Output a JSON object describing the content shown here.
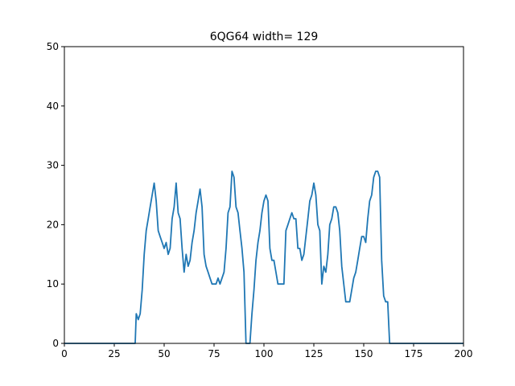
{
  "chart_data": {
    "type": "line",
    "title": "6QG64 width= 129",
    "xlabel": "",
    "ylabel": "",
    "xlim": [
      0,
      200
    ],
    "ylim": [
      0,
      50
    ],
    "xticks": [
      0,
      25,
      50,
      75,
      100,
      125,
      150,
      175,
      200
    ],
    "yticks": [
      0,
      10,
      20,
      30,
      40,
      50
    ],
    "grid": false,
    "line_color": "#1f77b4",
    "series": [
      {
        "points": [
          [
            0,
            0
          ],
          [
            35,
            0
          ],
          [
            35.5,
            0
          ],
          [
            36,
            5
          ],
          [
            37,
            4
          ],
          [
            38,
            5
          ],
          [
            39,
            9
          ],
          [
            40,
            15
          ],
          [
            41,
            19
          ],
          [
            42,
            21
          ],
          [
            43,
            23
          ],
          [
            44,
            25
          ],
          [
            45,
            27
          ],
          [
            46,
            24
          ],
          [
            47,
            19
          ],
          [
            48,
            18
          ],
          [
            49,
            17
          ],
          [
            50,
            16
          ],
          [
            51,
            17
          ],
          [
            52,
            15
          ],
          [
            53,
            16
          ],
          [
            54,
            21
          ],
          [
            55,
            23
          ],
          [
            56,
            27
          ],
          [
            57,
            22
          ],
          [
            58,
            21
          ],
          [
            59,
            16
          ],
          [
            60,
            12
          ],
          [
            61,
            15
          ],
          [
            62,
            13
          ],
          [
            63,
            14
          ],
          [
            64,
            17
          ],
          [
            65,
            19
          ],
          [
            66,
            22
          ],
          [
            67,
            24
          ],
          [
            68,
            26
          ],
          [
            69,
            23
          ],
          [
            70,
            15
          ],
          [
            71,
            13
          ],
          [
            72,
            12
          ],
          [
            73,
            11
          ],
          [
            74,
            10
          ],
          [
            75,
            10
          ],
          [
            76,
            10
          ],
          [
            77,
            11
          ],
          [
            78,
            10
          ],
          [
            79,
            11
          ],
          [
            80,
            12
          ],
          [
            81,
            16
          ],
          [
            82,
            22
          ],
          [
            83,
            23
          ],
          [
            84,
            29
          ],
          [
            85,
            28
          ],
          [
            86,
            23
          ],
          [
            87,
            22
          ],
          [
            88,
            19
          ],
          [
            89,
            16
          ],
          [
            90,
            12
          ],
          [
            91,
            0
          ],
          [
            93,
            0
          ],
          [
            94,
            5
          ],
          [
            95,
            9
          ],
          [
            96,
            14
          ],
          [
            97,
            17
          ],
          [
            98,
            19
          ],
          [
            99,
            22
          ],
          [
            100,
            24
          ],
          [
            101,
            25
          ],
          [
            102,
            24
          ],
          [
            103,
            16
          ],
          [
            104,
            14
          ],
          [
            105,
            14
          ],
          [
            106,
            12
          ],
          [
            107,
            10
          ],
          [
            108,
            10
          ],
          [
            109,
            10
          ],
          [
            110,
            10
          ],
          [
            111,
            19
          ],
          [
            112,
            20
          ],
          [
            113,
            21
          ],
          [
            114,
            22
          ],
          [
            115,
            21
          ],
          [
            116,
            21
          ],
          [
            117,
            16
          ],
          [
            118,
            16
          ],
          [
            119,
            14
          ],
          [
            120,
            15
          ],
          [
            121,
            18
          ],
          [
            122,
            21
          ],
          [
            123,
            24
          ],
          [
            124,
            25
          ],
          [
            125,
            27
          ],
          [
            126,
            25
          ],
          [
            127,
            20
          ],
          [
            128,
            19
          ],
          [
            129,
            10
          ],
          [
            130,
            13
          ],
          [
            131,
            12
          ],
          [
            132,
            15
          ],
          [
            133,
            20
          ],
          [
            134,
            21
          ],
          [
            135,
            23
          ],
          [
            136,
            23
          ],
          [
            137,
            22
          ],
          [
            138,
            19
          ],
          [
            139,
            13
          ],
          [
            140,
            10
          ],
          [
            141,
            7
          ],
          [
            142,
            7
          ],
          [
            143,
            7
          ],
          [
            144,
            9
          ],
          [
            145,
            11
          ],
          [
            146,
            12
          ],
          [
            147,
            14
          ],
          [
            148,
            16
          ],
          [
            149,
            18
          ],
          [
            150,
            18
          ],
          [
            151,
            17
          ],
          [
            152,
            21
          ],
          [
            153,
            24
          ],
          [
            154,
            25
          ],
          [
            155,
            28
          ],
          [
            156,
            29
          ],
          [
            157,
            29
          ],
          [
            158,
            28
          ],
          [
            159,
            14
          ],
          [
            160,
            8
          ],
          [
            161,
            7
          ],
          [
            162,
            7
          ],
          [
            163,
            0
          ],
          [
            200,
            0
          ]
        ]
      }
    ]
  }
}
